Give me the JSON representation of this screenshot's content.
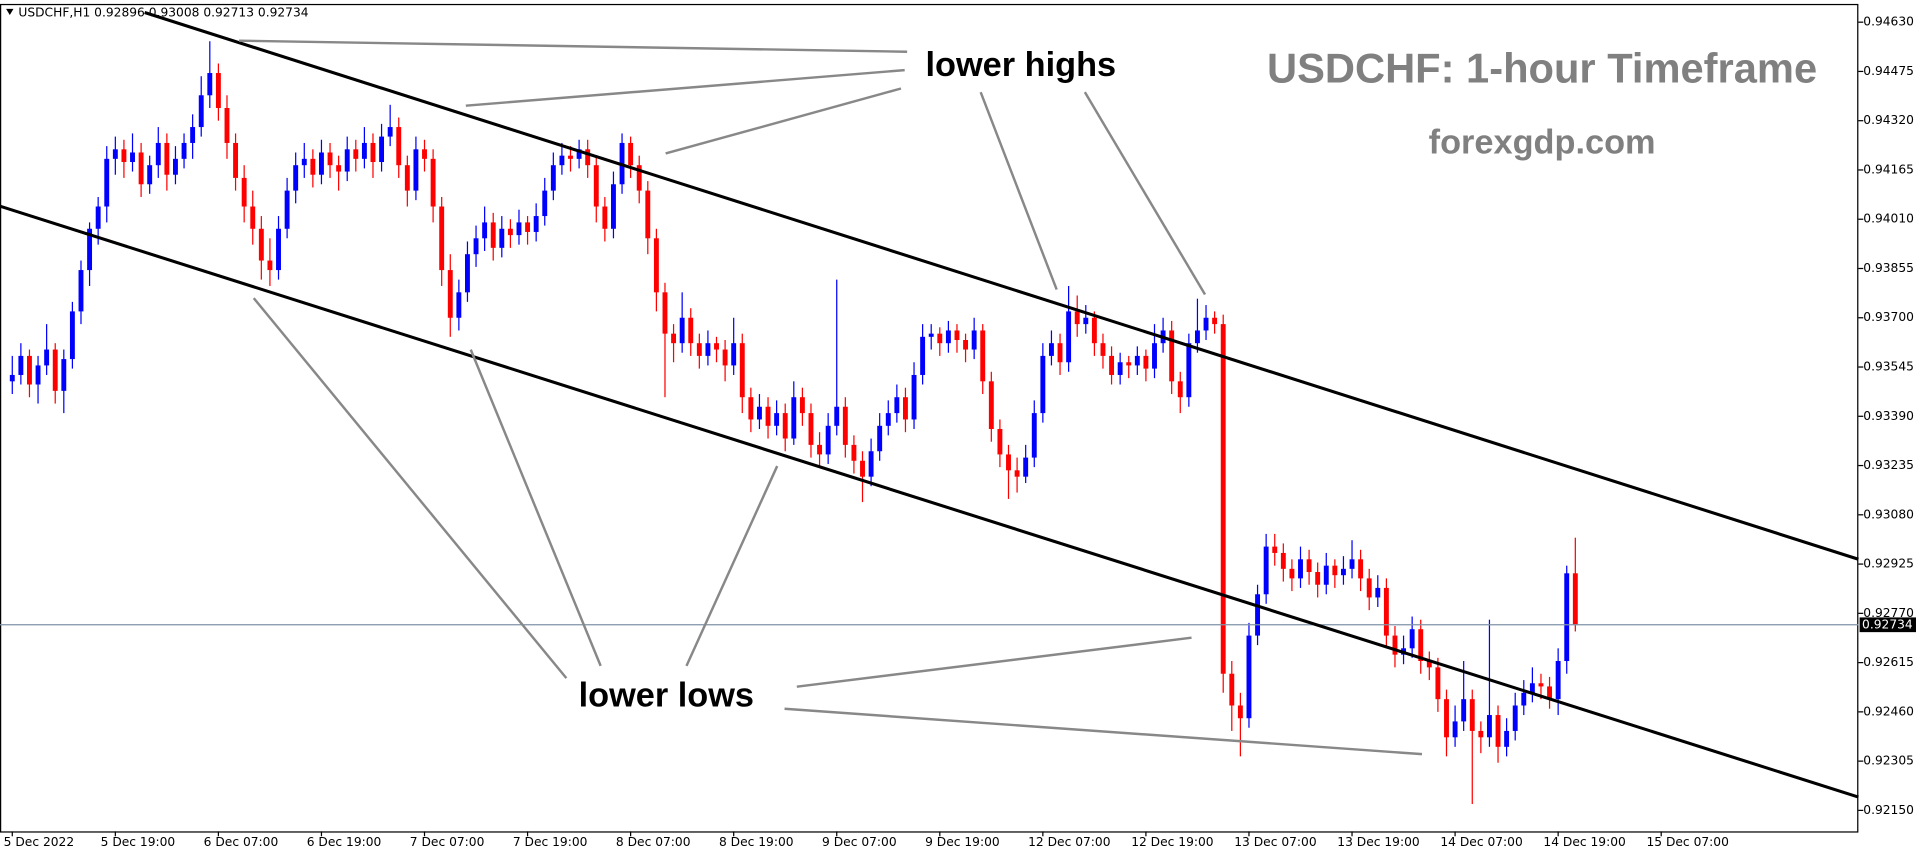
{
  "chart_data": {
    "type": "candlestick",
    "symbol": "USDCHF,H1",
    "title": "USDCHF: 1-hour Timeframe",
    "subtitle": "forexgdp.com",
    "annotations": [
      "lower highs",
      "lower lows"
    ],
    "up_color": "#0000ff",
    "down_color": "#ff0000",
    "ylim": [
      0.92084,
      0.94699
    ],
    "yticks": [
      {
        "value": 0.9463,
        "label": "0.94630"
      },
      {
        "value": 0.94475,
        "label": "0.94475"
      },
      {
        "value": 0.9432,
        "label": "0.94320"
      },
      {
        "value": 0.94165,
        "label": "0.94165"
      },
      {
        "value": 0.9401,
        "label": "0.94010"
      },
      {
        "value": 0.93855,
        "label": "0.93855"
      },
      {
        "value": 0.937,
        "label": "0.93700"
      },
      {
        "value": 0.93545,
        "label": "0.93545"
      },
      {
        "value": 0.9339,
        "label": "0.93390"
      },
      {
        "value": 0.93235,
        "label": "0.93235"
      },
      {
        "value": 0.9308,
        "label": "0.93080"
      },
      {
        "value": 0.92925,
        "label": "0.92925"
      },
      {
        "value": 0.9277,
        "label": "0.92770"
      },
      {
        "value": 0.92615,
        "label": "0.92615"
      },
      {
        "value": 0.9246,
        "label": "0.92460"
      },
      {
        "value": 0.92305,
        "label": "0.92305"
      },
      {
        "value": 0.9215,
        "label": "0.92150"
      }
    ],
    "xlim": [
      -1.43,
      214.96
    ],
    "xticks": [
      {
        "value": 0,
        "label": "5 Dec 2022"
      },
      {
        "value": 12,
        "label": "5 Dec 19:00"
      },
      {
        "value": 24,
        "label": "6 Dec 07:00"
      },
      {
        "value": 36,
        "label": "6 Dec 19:00"
      },
      {
        "value": 48,
        "label": "7 Dec 07:00"
      },
      {
        "value": 60,
        "label": "7 Dec 19:00"
      },
      {
        "value": 72,
        "label": "8 Dec 07:00"
      },
      {
        "value": 84,
        "label": "8 Dec 19:00"
      },
      {
        "value": 96,
        "label": "9 Dec 07:00"
      },
      {
        "value": 108,
        "label": "9 Dec 19:00"
      },
      {
        "value": 120,
        "label": "12 Dec 07:00"
      },
      {
        "value": 132,
        "label": "12 Dec 19:00"
      },
      {
        "value": 144,
        "label": "13 Dec 07:00"
      },
      {
        "value": 156,
        "label": "13 Dec 19:00"
      },
      {
        "value": 168,
        "label": "14 Dec 07:00"
      },
      {
        "value": 180,
        "label": "14 Dec 19:00"
      },
      {
        "value": 192,
        "label": "15 Dec 07:00"
      }
    ],
    "candles": [
      [
        0.935,
        0.9358,
        0.9346,
        0.9352
      ],
      [
        0.9352,
        0.9362,
        0.9349,
        0.9358
      ],
      [
        0.9358,
        0.936,
        0.9345,
        0.9349
      ],
      [
        0.9349,
        0.9358,
        0.9343,
        0.9355
      ],
      [
        0.9355,
        0.9368,
        0.9352,
        0.936
      ],
      [
        0.936,
        0.9362,
        0.9343,
        0.9347
      ],
      [
        0.9347,
        0.936,
        0.934,
        0.9357
      ],
      [
        0.9357,
        0.9375,
        0.9354,
        0.9372
      ],
      [
        0.9372,
        0.9388,
        0.9368,
        0.9385
      ],
      [
        0.9385,
        0.94,
        0.938,
        0.9398
      ],
      [
        0.9398,
        0.9408,
        0.9393,
        0.9405
      ],
      [
        0.9405,
        0.9424,
        0.94,
        0.942
      ],
      [
        0.942,
        0.9427,
        0.9415,
        0.9423
      ],
      [
        0.9423,
        0.9426,
        0.9414,
        0.9419
      ],
      [
        0.9419,
        0.9428,
        0.9416,
        0.9422
      ],
      [
        0.9422,
        0.9425,
        0.9408,
        0.9412
      ],
      [
        0.9412,
        0.9421,
        0.9409,
        0.9418
      ],
      [
        0.9418,
        0.943,
        0.9414,
        0.9425
      ],
      [
        0.9425,
        0.9428,
        0.941,
        0.9415
      ],
      [
        0.9415,
        0.9424,
        0.9412,
        0.942
      ],
      [
        0.942,
        0.9428,
        0.9417,
        0.9425
      ],
      [
        0.9425,
        0.9434,
        0.942,
        0.943
      ],
      [
        0.943,
        0.9446,
        0.9427,
        0.944
      ],
      [
        0.944,
        0.9457,
        0.9436,
        0.9447
      ],
      [
        0.9447,
        0.945,
        0.9432,
        0.9436
      ],
      [
        0.9436,
        0.944,
        0.942,
        0.9425
      ],
      [
        0.9425,
        0.9428,
        0.941,
        0.9414
      ],
      [
        0.9414,
        0.9418,
        0.94,
        0.9405
      ],
      [
        0.9405,
        0.941,
        0.9393,
        0.9398
      ],
      [
        0.9398,
        0.9402,
        0.9382,
        0.9388
      ],
      [
        0.9388,
        0.9395,
        0.938,
        0.9385
      ],
      [
        0.9385,
        0.9402,
        0.9382,
        0.9398
      ],
      [
        0.9398,
        0.9414,
        0.9395,
        0.941
      ],
      [
        0.941,
        0.9422,
        0.9406,
        0.9418
      ],
      [
        0.9418,
        0.9425,
        0.9414,
        0.942
      ],
      [
        0.942,
        0.9423,
        0.9411,
        0.9415
      ],
      [
        0.9415,
        0.9426,
        0.9412,
        0.9422
      ],
      [
        0.9422,
        0.9425,
        0.9414,
        0.9418
      ],
      [
        0.9418,
        0.9421,
        0.941,
        0.9416
      ],
      [
        0.9416,
        0.9427,
        0.9413,
        0.9423
      ],
      [
        0.9423,
        0.9426,
        0.9416,
        0.942
      ],
      [
        0.942,
        0.943,
        0.9417,
        0.9425
      ],
      [
        0.9425,
        0.9428,
        0.9414,
        0.9419
      ],
      [
        0.9419,
        0.9431,
        0.9416,
        0.9427
      ],
      [
        0.9427,
        0.9437,
        0.9424,
        0.943
      ],
      [
        0.943,
        0.9433,
        0.9414,
        0.9418
      ],
      [
        0.9418,
        0.9421,
        0.9405,
        0.941
      ],
      [
        0.941,
        0.9427,
        0.9407,
        0.9423
      ],
      [
        0.9423,
        0.9426,
        0.9416,
        0.942
      ],
      [
        0.942,
        0.9423,
        0.94,
        0.9405
      ],
      [
        0.9405,
        0.9408,
        0.938,
        0.9385
      ],
      [
        0.9385,
        0.939,
        0.9364,
        0.937
      ],
      [
        0.937,
        0.9382,
        0.9366,
        0.9378
      ],
      [
        0.9378,
        0.9394,
        0.9375,
        0.939
      ],
      [
        0.939,
        0.9399,
        0.9386,
        0.9395
      ],
      [
        0.9395,
        0.9405,
        0.9391,
        0.94
      ],
      [
        0.94,
        0.9403,
        0.9388,
        0.9392
      ],
      [
        0.9392,
        0.9402,
        0.9389,
        0.9398
      ],
      [
        0.9398,
        0.9401,
        0.9392,
        0.9396
      ],
      [
        0.9396,
        0.9404,
        0.9393,
        0.94
      ],
      [
        0.94,
        0.9402,
        0.9393,
        0.9397
      ],
      [
        0.9397,
        0.9406,
        0.9394,
        0.9402
      ],
      [
        0.9402,
        0.9414,
        0.9399,
        0.941
      ],
      [
        0.941,
        0.9422,
        0.9407,
        0.9418
      ],
      [
        0.9418,
        0.9425,
        0.9415,
        0.9421
      ],
      [
        0.9421,
        0.9424,
        0.9416,
        0.942
      ],
      [
        0.942,
        0.9426,
        0.9417,
        0.9423
      ],
      [
        0.9423,
        0.9426,
        0.9414,
        0.9418
      ],
      [
        0.9418,
        0.9421,
        0.94,
        0.9405
      ],
      [
        0.9405,
        0.9408,
        0.9394,
        0.9398
      ],
      [
        0.9398,
        0.9416,
        0.9395,
        0.9412
      ],
      [
        0.9412,
        0.9428,
        0.9409,
        0.9425
      ],
      [
        0.9425,
        0.9427,
        0.9414,
        0.9418
      ],
      [
        0.9418,
        0.9421,
        0.9406,
        0.941
      ],
      [
        0.941,
        0.9413,
        0.939,
        0.9395
      ],
      [
        0.9395,
        0.9398,
        0.9372,
        0.9378
      ],
      [
        0.9378,
        0.9381,
        0.9345,
        0.9365
      ],
      [
        0.9365,
        0.9368,
        0.9356,
        0.9362
      ],
      [
        0.9362,
        0.9378,
        0.9359,
        0.937
      ],
      [
        0.937,
        0.9373,
        0.9358,
        0.9362
      ],
      [
        0.9362,
        0.9365,
        0.9354,
        0.9358
      ],
      [
        0.9358,
        0.9366,
        0.9355,
        0.9362
      ],
      [
        0.9362,
        0.9364,
        0.9356,
        0.936
      ],
      [
        0.936,
        0.9363,
        0.935,
        0.9355
      ],
      [
        0.9355,
        0.937,
        0.9352,
        0.9362
      ],
      [
        0.9362,
        0.9365,
        0.934,
        0.9345
      ],
      [
        0.9345,
        0.9348,
        0.9334,
        0.9338
      ],
      [
        0.9338,
        0.9346,
        0.9335,
        0.9342
      ],
      [
        0.9342,
        0.9345,
        0.9332,
        0.9336
      ],
      [
        0.9336,
        0.9344,
        0.9333,
        0.934
      ],
      [
        0.934,
        0.9343,
        0.9328,
        0.9332
      ],
      [
        0.9332,
        0.935,
        0.933,
        0.9345
      ],
      [
        0.9345,
        0.9348,
        0.9336,
        0.934
      ],
      [
        0.934,
        0.9343,
        0.9326,
        0.933
      ],
      [
        0.933,
        0.9334,
        0.9323,
        0.9327
      ],
      [
        0.9327,
        0.934,
        0.9324,
        0.9336
      ],
      [
        0.9336,
        0.9382,
        0.9333,
        0.9342
      ],
      [
        0.9342,
        0.9345,
        0.9326,
        0.933
      ],
      [
        0.933,
        0.9333,
        0.9321,
        0.9325
      ],
      [
        0.9325,
        0.9328,
        0.9312,
        0.932
      ],
      [
        0.932,
        0.9332,
        0.9317,
        0.9328
      ],
      [
        0.9328,
        0.934,
        0.9325,
        0.9336
      ],
      [
        0.9336,
        0.9344,
        0.9333,
        0.934
      ],
      [
        0.934,
        0.9349,
        0.9337,
        0.9345
      ],
      [
        0.9345,
        0.9348,
        0.9334,
        0.9338
      ],
      [
        0.9338,
        0.9356,
        0.9335,
        0.9352
      ],
      [
        0.9352,
        0.9368,
        0.9349,
        0.9364
      ],
      [
        0.9364,
        0.9368,
        0.936,
        0.9365
      ],
      [
        0.9365,
        0.9367,
        0.9358,
        0.9362
      ],
      [
        0.9362,
        0.9369,
        0.9359,
        0.9366
      ],
      [
        0.9366,
        0.9368,
        0.9359,
        0.9363
      ],
      [
        0.9363,
        0.9365,
        0.9356,
        0.936
      ],
      [
        0.936,
        0.937,
        0.9357,
        0.9366
      ],
      [
        0.9366,
        0.9368,
        0.9346,
        0.935
      ],
      [
        0.935,
        0.9353,
        0.9331,
        0.9335
      ],
      [
        0.9335,
        0.9338,
        0.9323,
        0.9327
      ],
      [
        0.9327,
        0.933,
        0.9313,
        0.9322
      ],
      [
        0.9322,
        0.9326,
        0.9315,
        0.932
      ],
      [
        0.932,
        0.933,
        0.9318,
        0.9326
      ],
      [
        0.9326,
        0.9344,
        0.9323,
        0.934
      ],
      [
        0.934,
        0.9362,
        0.9337,
        0.9358
      ],
      [
        0.9358,
        0.9366,
        0.9355,
        0.9362
      ],
      [
        0.9362,
        0.9365,
        0.9352,
        0.9356
      ],
      [
        0.9356,
        0.938,
        0.9353,
        0.9372
      ],
      [
        0.9372,
        0.9377,
        0.9364,
        0.9368
      ],
      [
        0.9368,
        0.9374,
        0.9365,
        0.937
      ],
      [
        0.937,
        0.9372,
        0.9358,
        0.9362
      ],
      [
        0.9362,
        0.9365,
        0.9354,
        0.9358
      ],
      [
        0.9358,
        0.9361,
        0.9349,
        0.9352
      ],
      [
        0.9352,
        0.9359,
        0.9349,
        0.9356
      ],
      [
        0.9356,
        0.9358,
        0.9351,
        0.9355
      ],
      [
        0.9355,
        0.9361,
        0.9352,
        0.9358
      ],
      [
        0.9358,
        0.936,
        0.935,
        0.9354
      ],
      [
        0.9354,
        0.9368,
        0.9351,
        0.9362
      ],
      [
        0.9362,
        0.937,
        0.9359,
        0.9366
      ],
      [
        0.9366,
        0.9369,
        0.9346,
        0.935
      ],
      [
        0.935,
        0.9353,
        0.934,
        0.9345
      ],
      [
        0.9345,
        0.9365,
        0.9342,
        0.9362
      ],
      [
        0.9362,
        0.9376,
        0.9359,
        0.9366
      ],
      [
        0.9366,
        0.9374,
        0.9363,
        0.937
      ],
      [
        0.937,
        0.9372,
        0.9365,
        0.9368
      ],
      [
        0.9368,
        0.9371,
        0.9252,
        0.9258
      ],
      [
        0.9258,
        0.9262,
        0.924,
        0.9248
      ],
      [
        0.9248,
        0.9252,
        0.9232,
        0.9244
      ],
      [
        0.9244,
        0.9274,
        0.9241,
        0.927
      ],
      [
        0.927,
        0.9286,
        0.9267,
        0.9283
      ],
      [
        0.9283,
        0.9302,
        0.928,
        0.9298
      ],
      [
        0.9298,
        0.9302,
        0.9292,
        0.9296
      ],
      [
        0.9296,
        0.9299,
        0.9287,
        0.9291
      ],
      [
        0.9291,
        0.9294,
        0.9284,
        0.9288
      ],
      [
        0.9288,
        0.9298,
        0.9285,
        0.9294
      ],
      [
        0.9294,
        0.9297,
        0.9286,
        0.929
      ],
      [
        0.929,
        0.9293,
        0.9282,
        0.9286
      ],
      [
        0.9286,
        0.9296,
        0.9283,
        0.9292
      ],
      [
        0.9292,
        0.9294,
        0.9285,
        0.9289
      ],
      [
        0.9289,
        0.9295,
        0.9286,
        0.9291
      ],
      [
        0.9291,
        0.93,
        0.9288,
        0.9294
      ],
      [
        0.9294,
        0.9297,
        0.9284,
        0.9288
      ],
      [
        0.9288,
        0.9291,
        0.9278,
        0.9282
      ],
      [
        0.9282,
        0.9289,
        0.9279,
        0.9285
      ],
      [
        0.9285,
        0.9288,
        0.9266,
        0.927
      ],
      [
        0.927,
        0.9273,
        0.926,
        0.9264
      ],
      [
        0.9264,
        0.927,
        0.9261,
        0.9266
      ],
      [
        0.9266,
        0.9276,
        0.9263,
        0.9272
      ],
      [
        0.9272,
        0.9275,
        0.9258,
        0.9262
      ],
      [
        0.9262,
        0.9265,
        0.9256,
        0.926
      ],
      [
        0.926,
        0.9263,
        0.9246,
        0.925
      ],
      [
        0.925,
        0.9253,
        0.9232,
        0.9238
      ],
      [
        0.9238,
        0.9248,
        0.9235,
        0.9243
      ],
      [
        0.9243,
        0.9262,
        0.924,
        0.925
      ],
      [
        0.925,
        0.9253,
        0.9217,
        0.924
      ],
      [
        0.924,
        0.9243,
        0.9233,
        0.9238
      ],
      [
        0.9238,
        0.9275,
        0.9235,
        0.9245
      ],
      [
        0.9245,
        0.9248,
        0.923,
        0.9235
      ],
      [
        0.9235,
        0.9244,
        0.9232,
        0.924
      ],
      [
        0.924,
        0.9252,
        0.9237,
        0.9248
      ],
      [
        0.9248,
        0.9256,
        0.9245,
        0.9252
      ],
      [
        0.9252,
        0.926,
        0.9249,
        0.9255
      ],
      [
        0.9255,
        0.9258,
        0.925,
        0.9254
      ],
      [
        0.9254,
        0.9257,
        0.9247,
        0.925
      ],
      [
        0.925,
        0.9266,
        0.9245,
        0.9262
      ],
      [
        0.9262,
        0.9292,
        0.9258,
        0.92896
      ],
      [
        0.92896,
        0.93008,
        0.92713,
        0.92734
      ]
    ]
  }
}
